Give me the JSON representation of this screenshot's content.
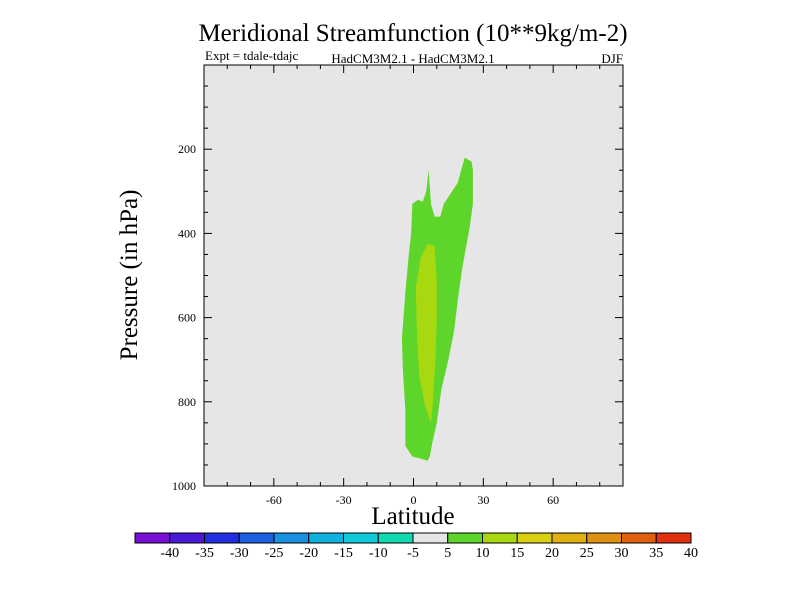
{
  "chart_data": {
    "type": "contour",
    "title": "Meridional Streamfunction (10**9kg/m-2)",
    "subtitle_left": "Expt = tdale-tdajc",
    "subtitle_center": "HadCM3M2.1 - HadCM3M2.1",
    "subtitle_right": "DJF",
    "xlabel": "Latitude",
    "ylabel": "Pressure (in hPa)",
    "xlim": [
      -90,
      90
    ],
    "ylim": [
      1000,
      0
    ],
    "x_ticks": [
      -60,
      -30,
      0,
      30,
      60
    ],
    "x_tick_labels": [
      "-60",
      "-30",
      "0",
      "30",
      "60"
    ],
    "y_ticks": [
      200,
      400,
      600,
      800,
      1000
    ],
    "y_tick_labels": [
      "200",
      "400",
      "600",
      "800",
      "1000"
    ],
    "background_color": "#e6e6e6",
    "colorbar": {
      "labels": [
        "-40",
        "-35",
        "-30",
        "-25",
        "-20",
        "-15",
        "-10",
        "-5",
        "5",
        "10",
        "15",
        "20",
        "25",
        "30",
        "35",
        "40"
      ],
      "colors": [
        "#7a0fd8",
        "#4a1ad8",
        "#2030e0",
        "#1a60e0",
        "#1a90e0",
        "#10b0e0",
        "#10c8d8",
        "#10d8b0",
        "#e6e6e6",
        "#5ed52a",
        "#a8d810",
        "#d8d010",
        "#e0b010",
        "#e09010",
        "#e06010",
        "#e03010"
      ]
    },
    "regions": [
      {
        "name": "positive-5-to-10",
        "level": "5 to 10",
        "color": "#5ed52a",
        "boundary": [
          [
            -0.5,
            930
          ],
          [
            -3.5,
            905
          ],
          [
            -3.5,
            820
          ],
          [
            -4.5,
            730
          ],
          [
            -5,
            650
          ],
          [
            -3.5,
            540
          ],
          [
            -2,
            450
          ],
          [
            -1,
            400
          ],
          [
            -0.5,
            330
          ],
          [
            2,
            320
          ],
          [
            4,
            325
          ],
          [
            5.5,
            300
          ],
          [
            6.5,
            250
          ],
          [
            7.5,
            330
          ],
          [
            9,
            360
          ],
          [
            11.5,
            360
          ],
          [
            13,
            330
          ],
          [
            16,
            305
          ],
          [
            19,
            280
          ],
          [
            22,
            220
          ],
          [
            25,
            230
          ],
          [
            25.5,
            250
          ],
          [
            25.5,
            330
          ],
          [
            24,
            390
          ],
          [
            21,
            480
          ],
          [
            19,
            560
          ],
          [
            17.5,
            630
          ],
          [
            15,
            700
          ],
          [
            12,
            770
          ],
          [
            10,
            850
          ],
          [
            8,
            900
          ],
          [
            7,
            930
          ],
          [
            6,
            940
          ],
          [
            3,
            935
          ]
        ]
      },
      {
        "name": "positive-10-to-15",
        "level": "10 to 15",
        "color": "#a8d810",
        "boundary": [
          [
            3,
            460
          ],
          [
            6,
            425
          ],
          [
            9,
            430
          ],
          [
            10,
            510
          ],
          [
            10,
            600
          ],
          [
            9.5,
            690
          ],
          [
            8.5,
            790
          ],
          [
            7.5,
            850
          ],
          [
            5,
            810
          ],
          [
            2.5,
            740
          ],
          [
            1.5,
            640
          ],
          [
            1,
            530
          ]
        ]
      }
    ]
  }
}
